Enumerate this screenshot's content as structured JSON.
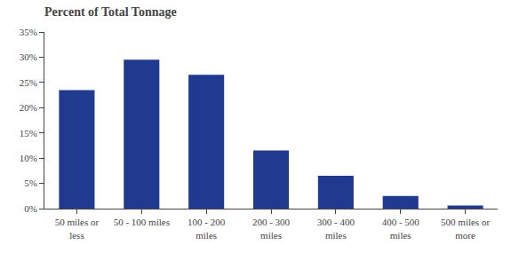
{
  "chart_data": {
    "type": "bar",
    "title": "Percent of Total Tonnage",
    "categories": [
      "50 miles or\nless",
      "50 - 100 miles",
      "100 - 200\nmiles",
      "200 - 300\nmiles",
      "300 - 400\nmiles",
      "400 - 500\nmiles",
      "500 miles or\nmore"
    ],
    "values": [
      23.5,
      29.5,
      26.5,
      11.5,
      6.5,
      2.5,
      0.6
    ],
    "color": "#1f3a8f",
    "ylim": [
      0,
      35
    ],
    "yticks": [
      {
        "value": 0,
        "label": "0%"
      },
      {
        "value": 5,
        "label": "5%"
      },
      {
        "value": 10,
        "label": "10%"
      },
      {
        "value": 15,
        "label": "15%"
      },
      {
        "value": 20,
        "label": "20%"
      },
      {
        "value": 25,
        "label": "25%"
      },
      {
        "value": 30,
        "label": "30%"
      },
      {
        "value": 35,
        "label": "35%"
      }
    ],
    "grid": false
  }
}
